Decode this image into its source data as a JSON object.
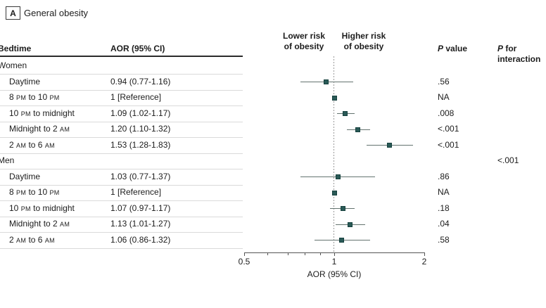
{
  "panel": {
    "label": "A",
    "title": "General obesity"
  },
  "table": {
    "bedtime": "Bedtime",
    "aor": "AOR (95% CI)"
  },
  "headers": {
    "lower1": "Lower risk",
    "lower2": "of obesity",
    "higher1": "Higher risk",
    "higher2": "of obesity",
    "p": "P",
    "value_rest": " value",
    "for_rest": " for",
    "interaction": "interaction"
  },
  "chart_data": {
    "type": "forest",
    "title": "General obesity",
    "xlabel": "AOR (95% CI)",
    "x_scale": "log",
    "x_range": [
      0.5,
      2
    ],
    "x_ticks": [
      0.5,
      1,
      2
    ],
    "x_tick_labels": [
      "0.5",
      "1",
      "2"
    ],
    "x_minor_ticks": [
      0.6,
      0.7,
      0.8,
      0.9
    ],
    "reference_line": 1,
    "groups": [
      {
        "name": "Women",
        "p_interaction": "",
        "rows": [
          {
            "label": "Daytime",
            "aor_text": "0.94 (0.77-1.16)",
            "est": 0.94,
            "lo": 0.77,
            "hi": 1.16,
            "p": ".56"
          },
          {
            "label": "8 PM to 10 PM",
            "aor_text": "1 [Reference]",
            "est": 1,
            "lo": null,
            "hi": null,
            "p": "NA"
          },
          {
            "label": "10 PM to midnight",
            "aor_text": "1.09 (1.02-1.17)",
            "est": 1.09,
            "lo": 1.02,
            "hi": 1.17,
            "p": ".008"
          },
          {
            "label": "Midnight to 2 AM",
            "aor_text": "1.20 (1.10-1.32)",
            "est": 1.2,
            "lo": 1.1,
            "hi": 1.32,
            "p": "<.001"
          },
          {
            "label": "2 AM to 6 AM",
            "aor_text": "1.53 (1.28-1.83)",
            "est": 1.53,
            "lo": 1.28,
            "hi": 1.83,
            "p": "<.001"
          }
        ]
      },
      {
        "name": "Men",
        "p_interaction": "<.001",
        "rows": [
          {
            "label": "Daytime",
            "aor_text": "1.03 (0.77-1.37)",
            "est": 1.03,
            "lo": 0.77,
            "hi": 1.37,
            "p": ".86"
          },
          {
            "label": "8 PM to 10 PM",
            "aor_text": "1 [Reference]",
            "est": 1,
            "lo": null,
            "hi": null,
            "p": "NA"
          },
          {
            "label": "10 PM to midnight",
            "aor_text": "1.07 (0.97-1.17)",
            "est": 1.07,
            "lo": 0.97,
            "hi": 1.17,
            "p": ".18"
          },
          {
            "label": "Midnight to 2 AM",
            "aor_text": "1.13 (1.01-1.27)",
            "est": 1.13,
            "lo": 1.01,
            "hi": 1.27,
            "p": ".04"
          },
          {
            "label": "2 AM to 6 AM",
            "aor_text": "1.06 (0.86-1.32)",
            "est": 1.06,
            "lo": 0.86,
            "hi": 1.32,
            "p": ".58"
          }
        ]
      }
    ],
    "colors": {
      "marker": "#2a5a57",
      "marker_border": "#16413e",
      "ci_line": "#63736f"
    }
  }
}
